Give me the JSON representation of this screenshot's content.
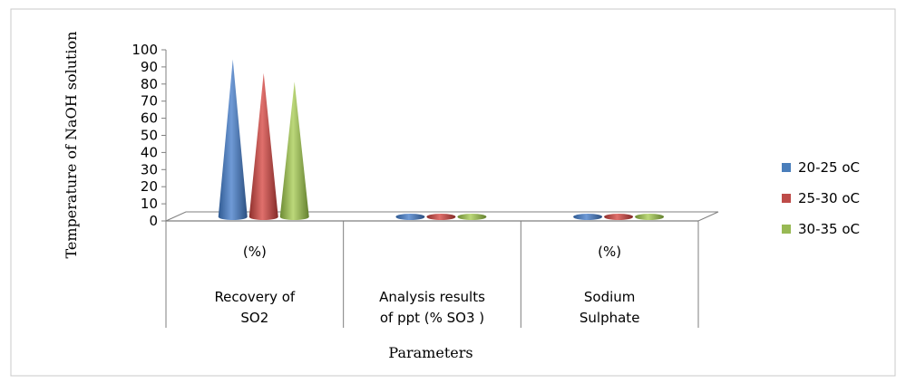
{
  "chart_data": {
    "type": "bar",
    "style": "3d-cone",
    "title": "",
    "xlabel": "Parameters",
    "ylabel": "Temperature of NaOH solution",
    "ylim": [
      0,
      100
    ],
    "yticks": [
      0,
      10,
      20,
      30,
      40,
      50,
      60,
      70,
      80,
      90,
      100
    ],
    "categories": [
      {
        "line1": "(%)",
        "line2": "Recovery of",
        "line3": "SO2"
      },
      {
        "line1": "",
        "line2": "Analysis results",
        "line3": "of ppt  (% SO3 )"
      },
      {
        "line1": "(%)",
        "line2": "Sodium",
        "line3": "Sulphate"
      }
    ],
    "series": [
      {
        "name": "20-25 oC",
        "color": "#4a7ebb",
        "values": [
          92,
          0,
          0
        ]
      },
      {
        "name": "25-30 oC",
        "color": "#be4b48",
        "values": [
          84,
          0,
          0
        ]
      },
      {
        "name": "30-35 oC",
        "color": "#98b954",
        "values": [
          79,
          0,
          0
        ]
      }
    ],
    "legend": "right",
    "grid": false
  }
}
